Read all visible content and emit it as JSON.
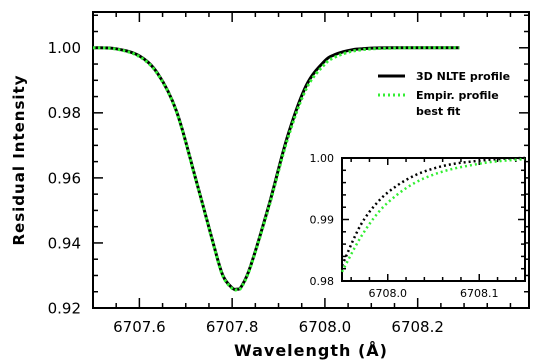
{
  "chart_data": [
    {
      "type": "line",
      "xlabel": "Wavelength (Å)",
      "ylabel": "Residual Intensity",
      "xlim": [
        6707.5,
        6708.44
      ],
      "ylim": [
        0.92,
        1.011
      ],
      "xticks": [
        6707.6,
        6707.8,
        6708.0,
        6708.2
      ],
      "xtick_labels": [
        "6707.6",
        "6707.8",
        "6708.0",
        "6708.2"
      ],
      "yticks": [
        0.92,
        0.94,
        0.96,
        0.98,
        1.0
      ],
      "ytick_labels": [
        "0.92",
        "0.94",
        "0.96",
        "0.98",
        "1.00"
      ],
      "grid": false,
      "legend_position": "top-right",
      "series": [
        {
          "name": "3D NLTE profile",
          "style": "solid",
          "color": "#000000",
          "x": [
            6707.5,
            6707.55,
            6707.6,
            6707.64,
            6707.68,
            6707.72,
            6707.76,
            6707.78,
            6707.8,
            6707.81,
            6707.82,
            6707.84,
            6707.88,
            6707.92,
            6707.96,
            6708.0,
            6708.02,
            6708.04,
            6708.06,
            6708.08,
            6708.1,
            6708.15,
            6708.2,
            6708.29
          ],
          "y": [
            1.0,
            0.9997,
            0.9975,
            0.992,
            0.9805,
            0.9605,
            0.9395,
            0.93,
            0.9262,
            0.9258,
            0.9266,
            0.933,
            0.952,
            0.973,
            0.9885,
            0.996,
            0.9978,
            0.9988,
            0.9994,
            0.9997,
            0.9999,
            1.0,
            1.0,
            1.0
          ]
        },
        {
          "name": "Empir. profile",
          "style": "dotted",
          "color": "#33ee33",
          "x": [
            6707.5,
            6707.55,
            6707.6,
            6707.64,
            6707.68,
            6707.72,
            6707.76,
            6707.78,
            6707.8,
            6707.81,
            6707.82,
            6707.84,
            6707.88,
            6707.92,
            6707.96,
            6708.0,
            6708.02,
            6708.04,
            6708.06,
            6708.08,
            6708.1,
            6708.15,
            6708.2,
            6708.29
          ],
          "y": [
            1.0,
            0.9996,
            0.9973,
            0.9918,
            0.9803,
            0.9603,
            0.9393,
            0.9298,
            0.926,
            0.9256,
            0.9264,
            0.9328,
            0.9515,
            0.9722,
            0.9875,
            0.995,
            0.997,
            0.9982,
            0.999,
            0.9994,
            0.9997,
            0.9999,
            1.0,
            1.0
          ]
        }
      ],
      "legend_entries": [
        "3D NLTE profile",
        "Empir. profile",
        "best fit"
      ]
    },
    {
      "type": "line",
      "xlim": [
        6707.95,
        6708.15
      ],
      "ylim": [
        0.98,
        1.0
      ],
      "xticks": [
        6708.0,
        6708.1
      ],
      "xtick_labels": [
        "6708.0",
        "6708.1"
      ],
      "yticks": [
        0.98,
        0.99,
        1.0
      ],
      "ytick_labels": [
        "0.98",
        "0.99",
        "1.00"
      ],
      "grid": false,
      "series": [
        {
          "name": "3D NLTE profile",
          "style": "dotted",
          "color": "#000000",
          "x": [
            6707.95,
            6707.97,
            6707.99,
            6708.01,
            6708.03,
            6708.05,
            6708.07,
            6708.09,
            6708.11,
            6708.13,
            6708.15
          ],
          "y": [
            0.9825,
            0.989,
            0.993,
            0.9955,
            0.9972,
            0.9983,
            0.999,
            0.9994,
            0.9997,
            0.9999,
            1.0
          ]
        },
        {
          "name": "Empir. profile",
          "style": "dotted",
          "color": "#33ee33",
          "x": [
            6707.95,
            6707.97,
            6707.99,
            6708.01,
            6708.03,
            6708.05,
            6708.07,
            6708.09,
            6708.11,
            6708.13,
            6708.15
          ],
          "y": [
            0.9815,
            0.987,
            0.9912,
            0.994,
            0.996,
            0.9973,
            0.9982,
            0.9988,
            0.9993,
            0.9996,
            0.9998
          ]
        }
      ]
    }
  ]
}
